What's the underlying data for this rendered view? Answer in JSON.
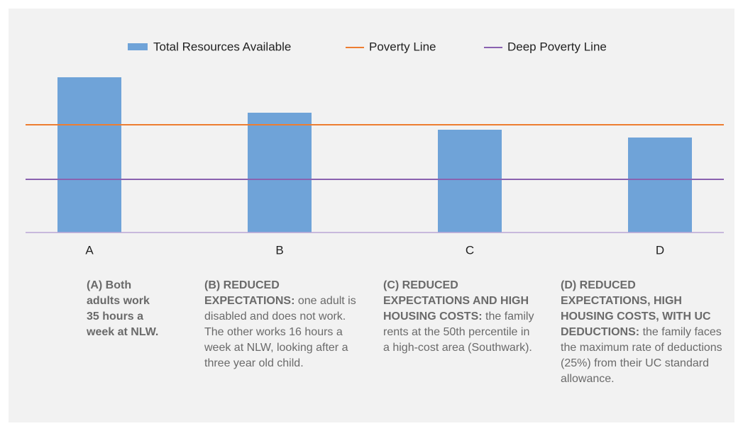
{
  "chart_data": {
    "type": "bar",
    "categories": [
      "A",
      "B",
      "C",
      "D"
    ],
    "series": [
      {
        "name": "Total Resources Available",
        "color": "#6fa3d8",
        "values": [
          219,
          169,
          145,
          134
        ]
      }
    ],
    "lines": [
      {
        "name": "Poverty Line",
        "color": "#ed7d31",
        "value": 152
      },
      {
        "name": "Deep Poverty Line",
        "color": "#8a62b0",
        "value": 75
      }
    ],
    "ylim": [
      0,
      228
    ],
    "captions": [
      {
        "bold": "(A) Both adults work 35 hours a week at NLW.",
        "text": ""
      },
      {
        "bold": "(B) REDUCED EXPECTATIONS:",
        "text": "one adult is disabled and does not work. The other works 16 hours a week at NLW, looking after a three year old child."
      },
      {
        "bold": "(C) REDUCED EXPECTATIONS AND HIGH HOUSING COSTS:",
        "text": "the family rents at the 50th percentile in a high-cost area (Southwark)."
      },
      {
        "bold": "(D) REDUCED EXPECTATIONS, HIGH HOUSING COSTS, WITH UC DEDUCTIONS:",
        "text": "the family faces the maximum rate of deductions (25%) from their UC standard allowance."
      }
    ]
  }
}
